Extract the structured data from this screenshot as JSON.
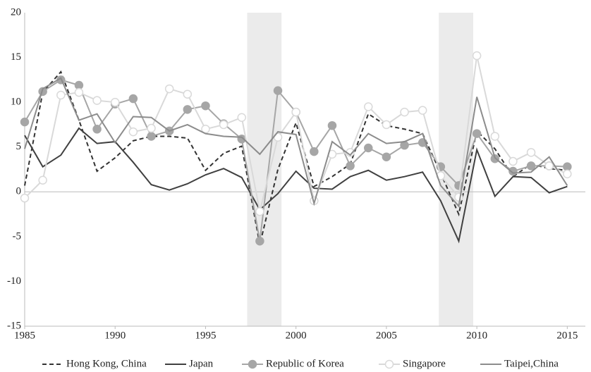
{
  "chart_data": {
    "type": "line",
    "x": [
      1985,
      1986,
      1987,
      1988,
      1989,
      1990,
      1991,
      1992,
      1993,
      1994,
      1995,
      1996,
      1997,
      1998,
      1999,
      2000,
      2001,
      2002,
      2003,
      2004,
      2005,
      2006,
      2007,
      2008,
      2009,
      2010,
      2011,
      2012,
      2013,
      2014,
      2015
    ],
    "series": [
      {
        "name": "Hong Kong, China",
        "color": "#333333",
        "dash": true,
        "marker": "none",
        "values": [
          0.7,
          11.1,
          13.4,
          8.0,
          2.3,
          3.8,
          5.7,
          6.2,
          6.2,
          6.0,
          2.4,
          4.3,
          5.1,
          -5.9,
          2.5,
          7.7,
          0.6,
          1.7,
          3.1,
          8.7,
          7.4,
          7.0,
          6.5,
          2.1,
          -2.5,
          6.8,
          4.8,
          1.7,
          3.1,
          2.6,
          2.4
        ]
      },
      {
        "name": "Japan",
        "color": "#404040",
        "dash": false,
        "marker": "none",
        "values": [
          6.3,
          2.8,
          4.1,
          7.1,
          5.4,
          5.6,
          3.3,
          0.8,
          0.2,
          0.9,
          1.9,
          2.6,
          1.6,
          -2.0,
          -0.2,
          2.3,
          0.4,
          0.3,
          1.7,
          2.4,
          1.3,
          1.7,
          2.2,
          -1.0,
          -5.5,
          4.7,
          -0.5,
          1.7,
          1.6,
          -0.1,
          0.6
        ]
      },
      {
        "name": "Republic of Korea",
        "color": "#a6a6a6",
        "dash": false,
        "marker": "filled",
        "values": [
          7.8,
          11.2,
          12.5,
          11.9,
          7.0,
          9.8,
          10.4,
          6.2,
          6.8,
          9.2,
          9.6,
          7.6,
          5.9,
          -5.5,
          11.3,
          8.9,
          4.5,
          7.4,
          2.9,
          4.9,
          3.9,
          5.2,
          5.5,
          2.8,
          0.7,
          6.5,
          3.7,
          2.3,
          2.9,
          2.9,
          2.8
        ]
      },
      {
        "name": "Singapore",
        "color": "#d9d9d9",
        "dash": false,
        "marker": "open",
        "values": [
          -0.7,
          1.3,
          10.8,
          11.1,
          10.2,
          10.0,
          6.7,
          7.1,
          11.5,
          10.9,
          7.0,
          7.5,
          8.3,
          -2.2,
          6.1,
          8.9,
          -1.0,
          4.2,
          4.4,
          9.5,
          7.5,
          8.9,
          9.1,
          1.8,
          -0.6,
          15.2,
          6.2,
          3.4,
          4.4,
          2.9,
          2.0
        ]
      },
      {
        "name": "Taipei,China",
        "color": "#8c8c8c",
        "dash": false,
        "marker": "none",
        "values": [
          4.8,
          11.5,
          12.7,
          8.0,
          8.7,
          5.5,
          8.4,
          8.3,
          6.8,
          7.5,
          6.5,
          6.2,
          6.1,
          4.2,
          6.7,
          6.4,
          -1.3,
          5.6,
          4.1,
          6.5,
          5.4,
          5.6,
          6.5,
          0.7,
          -1.6,
          10.6,
          3.8,
          2.1,
          2.2,
          3.9,
          0.7
        ]
      }
    ],
    "shaded_periods": [
      [
        1997.3,
        1999.2
      ],
      [
        2007.9,
        2009.8
      ]
    ],
    "xlim": [
      1985,
      2016
    ],
    "xticks": [
      1985,
      1990,
      1995,
      2000,
      2005,
      2010,
      2015
    ],
    "ylim": [
      -15,
      20
    ],
    "yticks": [
      -15,
      -10,
      -5,
      0,
      5,
      10,
      15,
      20
    ],
    "legend": "bottom"
  }
}
